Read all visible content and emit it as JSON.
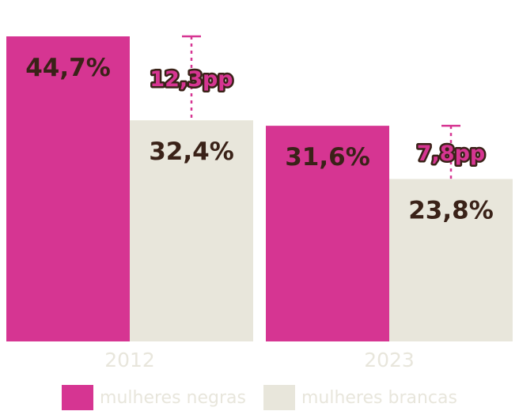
{
  "chart_data": {
    "type": "bar",
    "categories": [
      "2012",
      "2023"
    ],
    "series": [
      {
        "name": "mulheres negras",
        "values": [
          44.7,
          31.6
        ],
        "labels": [
          "44,7%",
          "31,6%"
        ],
        "color": "#d63592"
      },
      {
        "name": "mulheres brancas",
        "values": [
          32.4,
          23.8
        ],
        "labels": [
          "32,4%",
          "23,8%"
        ],
        "color": "#e8e6db"
      }
    ],
    "gaps": [
      {
        "category": "2012",
        "value": 12.3,
        "label": "12,3pp"
      },
      {
        "category": "2023",
        "value": 7.8,
        "label": "7,8pp"
      }
    ],
    "ylim": [
      0,
      44.7
    ],
    "grid": false,
    "legend_position": "bottom",
    "colors": {
      "tick_text": "#e8e6dc",
      "value_text": "#3a2218",
      "gap_line": "#d63592"
    }
  },
  "legend": {
    "items": [
      {
        "label": "mulheres negras",
        "color": "#d63592"
      },
      {
        "label": "mulheres brancas",
        "color": "#e8e6db"
      }
    ]
  }
}
